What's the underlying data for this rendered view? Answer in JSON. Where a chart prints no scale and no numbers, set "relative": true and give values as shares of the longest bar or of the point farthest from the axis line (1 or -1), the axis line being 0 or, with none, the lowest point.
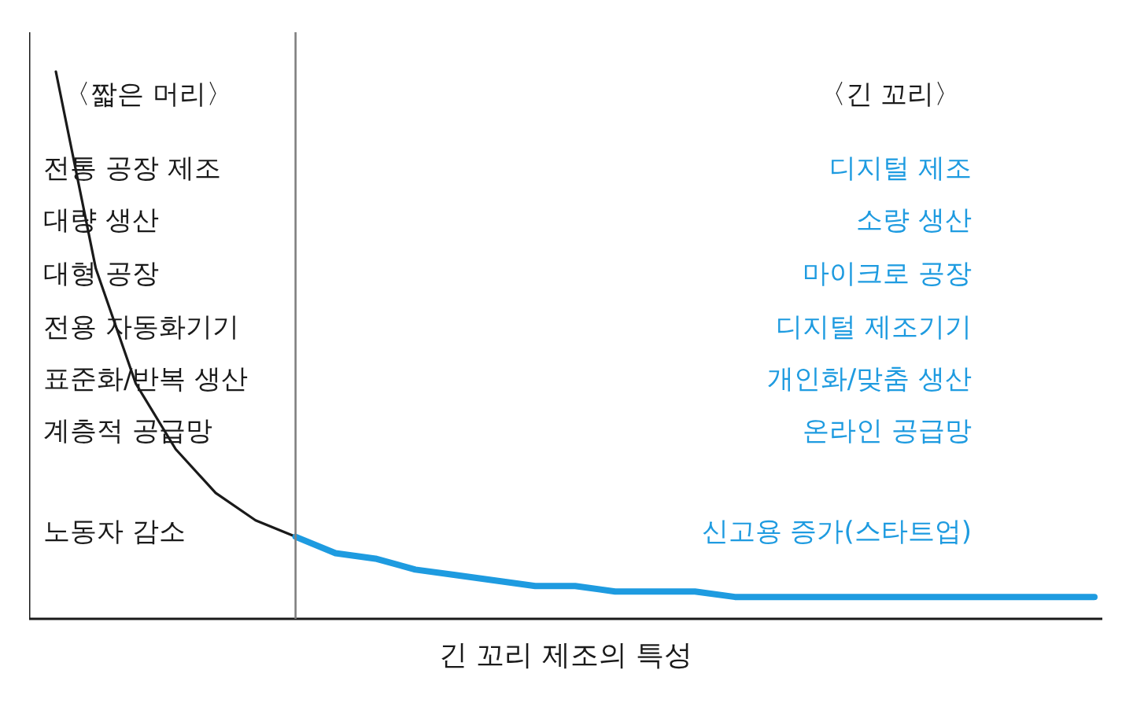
{
  "chart_data": {
    "type": "line",
    "relative": true,
    "title": "긴 꼬리 제조의 특성",
    "grid": false,
    "marker": "none",
    "line_style": "solid",
    "categories": [
      null,
      null,
      null,
      null,
      null,
      null,
      null,
      null,
      null,
      null,
      null,
      null,
      null,
      null,
      null,
      null,
      null,
      null,
      null,
      null,
      null,
      null,
      null,
      null,
      null,
      null,
      null
    ],
    "series": [
      {
        "color": "#1a1a1a",
        "values": [
          1,
          0.64,
          0.43,
          0.31,
          0.23,
          0.18,
          0.15,
          null,
          null,
          null,
          null,
          null,
          null,
          null,
          null,
          null,
          null,
          null,
          null,
          null,
          null,
          null,
          null,
          null,
          null,
          null,
          null
        ]
      },
      {
        "color": "#1e9be0",
        "values": [
          null,
          null,
          null,
          null,
          null,
          null,
          0.15,
          0.12,
          0.11,
          0.09,
          0.08,
          0.07,
          0.06,
          0.06,
          0.05,
          0.05,
          0.05,
          0.04,
          0.04,
          0.04,
          0.04,
          0.04,
          0.04,
          0.04,
          0.04,
          0.04,
          0.04
        ]
      }
    ],
    "annotations": [
      "〈짧은 머리〉",
      "전통 공장 제조",
      "대량 생산",
      "대형 공장",
      "전용 자동화기기",
      "표준화/반복 생산",
      "계층적 공급망",
      "노동자 감소",
      "〈긴 꼬리〉",
      "디지털 제조",
      "소량 생산",
      "마이크로 공장",
      "디지털 제조기기",
      "개인화/맞춤 생산",
      "온라인 공급망",
      "신고용 증가(스타트업)"
    ]
  }
}
